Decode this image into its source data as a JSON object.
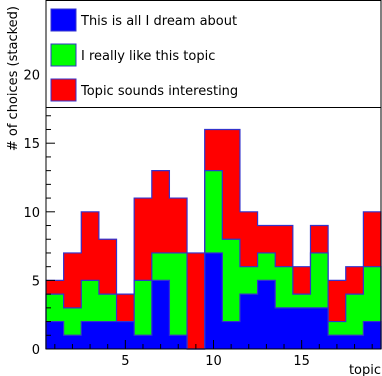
{
  "chart_data": {
    "type": "bar",
    "stacked": true,
    "histogram_style": true,
    "x_bins": [
      1,
      2,
      3,
      4,
      5,
      6,
      7,
      8,
      9,
      10,
      11,
      12,
      13,
      14,
      15,
      16,
      17,
      18,
      19
    ],
    "xlim": [
      0.5,
      19.5
    ],
    "ylim": [
      0,
      25
    ],
    "xlabel": "topic",
    "ylabel": "# of choices (stacked)",
    "x_ticks": [
      5,
      10,
      15
    ],
    "y_ticks": [
      0,
      5,
      10,
      15,
      20
    ],
    "series": [
      {
        "name": "This is all I dream about",
        "color": "#0000ff",
        "values": [
          2,
          1,
          2,
          2,
          2,
          1,
          5,
          1,
          0,
          7,
          2,
          4,
          5,
          3,
          3,
          3,
          1,
          1,
          2
        ]
      },
      {
        "name": "I really like this topic",
        "color": "#00ff00",
        "values": [
          2,
          2,
          3,
          2,
          0,
          4,
          2,
          6,
          0,
          6,
          6,
          2,
          2,
          3,
          1,
          4,
          1,
          3,
          4
        ]
      },
      {
        "name": "Topic sounds interesting",
        "color": "#ff0000",
        "values": [
          1,
          4,
          5,
          4,
          2,
          6,
          6,
          4,
          7,
          3,
          8,
          4,
          2,
          3,
          2,
          2,
          3,
          2,
          4
        ]
      }
    ],
    "legend_placement": "top"
  }
}
